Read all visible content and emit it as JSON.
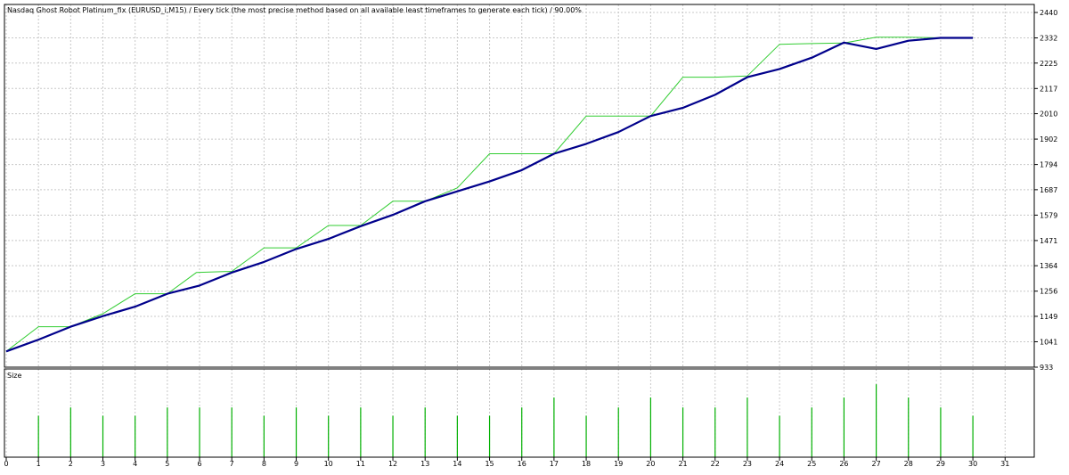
{
  "chart_data": [
    {
      "type": "line",
      "title": "Nasdaq Ghost Robot Platinum_fix (EURUSD_i,M15) / Every tick (the most precise method based on all available least timeframes to generate each tick) / 90.00%",
      "xlabel": "",
      "ylabel": "",
      "xlim": [
        0,
        31
      ],
      "ylim": [
        933,
        2440
      ],
      "x_ticks": [
        0,
        1,
        2,
        3,
        4,
        5,
        6,
        7,
        8,
        9,
        10,
        11,
        12,
        13,
        14,
        15,
        16,
        17,
        18,
        19,
        20,
        21,
        22,
        23,
        24,
        25,
        26,
        27,
        28,
        29,
        30,
        31
      ],
      "y_ticks": [
        933,
        1041,
        1149,
        1256,
        1364,
        1471,
        1579,
        1687,
        1794,
        1902,
        2010,
        2117,
        2225,
        2332,
        2440
      ],
      "grid": true,
      "colors": {
        "balance": "#00008b",
        "equity": "#32cd32",
        "grid": "#c8c8c8",
        "axis": "#000000"
      },
      "series": [
        {
          "name": "",
          "style": "balance",
          "points": [
            [
              0,
              1000
            ],
            [
              1,
              1050
            ],
            [
              2,
              1105
            ],
            [
              3,
              1150
            ],
            [
              4,
              1190
            ],
            [
              5,
              1245
            ],
            [
              6,
              1280
            ],
            [
              7,
              1335
            ],
            [
              8,
              1380
            ],
            [
              9,
              1435
            ],
            [
              10,
              1478
            ],
            [
              11,
              1532
            ],
            [
              12,
              1580
            ],
            [
              13,
              1638
            ],
            [
              14,
              1680
            ],
            [
              15,
              1722
            ],
            [
              16,
              1770
            ],
            [
              17,
              1840
            ],
            [
              18,
              1882
            ],
            [
              19,
              1932
            ],
            [
              20,
              2000
            ],
            [
              21,
              2035
            ],
            [
              22,
              2090
            ],
            [
              23,
              2165
            ],
            [
              24,
              2200
            ],
            [
              25,
              2248
            ],
            [
              26,
              2312
            ],
            [
              27,
              2285
            ],
            [
              28,
              2320
            ],
            [
              29,
              2332
            ],
            [
              30,
              2332
            ]
          ]
        },
        {
          "name": "",
          "style": "equity",
          "points": [
            [
              0,
              1000
            ],
            [
              1,
              1105
            ],
            [
              2,
              1105
            ],
            [
              3,
              1160
            ],
            [
              4,
              1245
            ],
            [
              5,
              1245
            ],
            [
              5.9,
              1335
            ],
            [
              7,
              1340
            ],
            [
              8,
              1440
            ],
            [
              9,
              1440
            ],
            [
              10,
              1535
            ],
            [
              11,
              1535
            ],
            [
              12,
              1638
            ],
            [
              13,
              1638
            ],
            [
              14,
              1695
            ],
            [
              15,
              1840
            ],
            [
              16,
              1840
            ],
            [
              17,
              1840
            ],
            [
              18,
              2000
            ],
            [
              19,
              2000
            ],
            [
              20,
              2000
            ],
            [
              21,
              2165
            ],
            [
              22,
              2165
            ],
            [
              23,
              2170
            ],
            [
              24,
              2305
            ],
            [
              25,
              2308
            ],
            [
              26,
              2310
            ],
            [
              27,
              2335
            ],
            [
              28,
              2335
            ],
            [
              29,
              2332
            ],
            [
              30,
              2332
            ]
          ]
        }
      ]
    },
    {
      "type": "bar",
      "title": "Size",
      "x": [
        1,
        2,
        3,
        4,
        5,
        6,
        7,
        8,
        9,
        10,
        11,
        12,
        13,
        14,
        15,
        16,
        17,
        18,
        19,
        20,
        21,
        22,
        23,
        24,
        25,
        26,
        27,
        28,
        29,
        30
      ],
      "values": [
        0.5,
        0.6,
        0.5,
        0.5,
        0.6,
        0.6,
        0.6,
        0.5,
        0.6,
        0.5,
        0.6,
        0.5,
        0.6,
        0.5,
        0.5,
        0.6,
        0.72,
        0.5,
        0.6,
        0.72,
        0.6,
        0.6,
        0.72,
        0.5,
        0.6,
        0.72,
        0.88,
        0.72,
        0.6,
        0.5
      ],
      "ylim": [
        0,
        1
      ],
      "colors": {
        "bar": "#00b000"
      }
    }
  ]
}
